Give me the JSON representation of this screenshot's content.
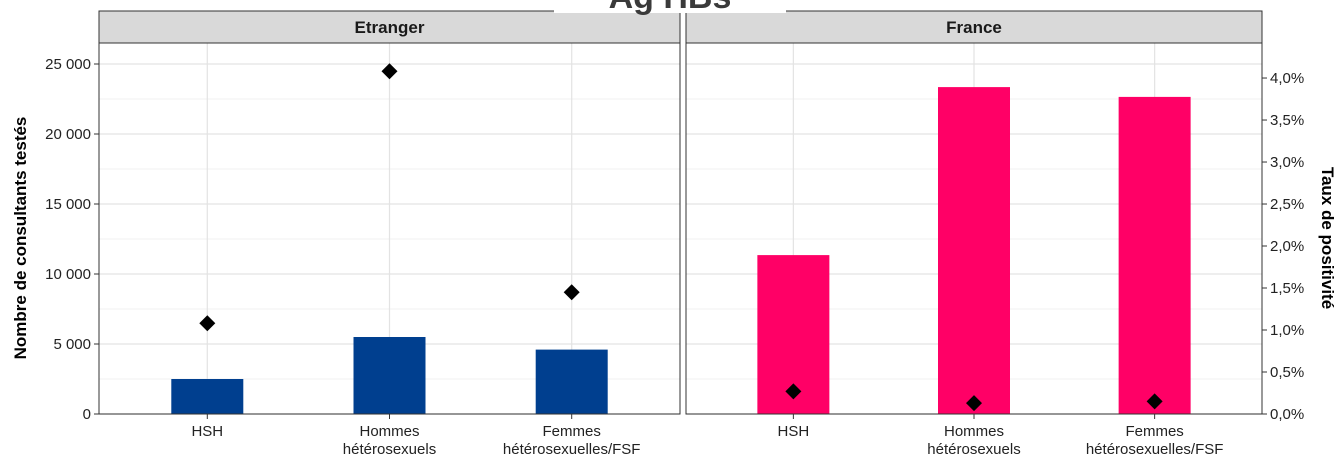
{
  "chart_data": {
    "type": "bar",
    "title": "Ag HBs",
    "categories": [
      [
        "HSH"
      ],
      [
        "Hommes",
        "hétérosexuels"
      ],
      [
        "Femmes",
        "hétérosexuelles/FSF"
      ]
    ],
    "ylabel": "Nombre de consultants testés",
    "y2label": "Taux de positivité",
    "ylim": [
      0,
      26500
    ],
    "y2lim": [
      0,
      4.417
    ],
    "y_ticks": [
      0,
      5000,
      10000,
      15000,
      20000,
      25000
    ],
    "y_tick_labels": [
      "0",
      "5 000",
      "10 000",
      "15 000",
      "20 000",
      "25 000"
    ],
    "y2_ticks": [
      0,
      0.5,
      1.0,
      1.5,
      2.0,
      2.5,
      3.0,
      3.5,
      4.0
    ],
    "y2_tick_labels": [
      "0,0%",
      "0,5%",
      "1,0%",
      "1,5%",
      "2,0%",
      "2,5%",
      "3,0%",
      "3,5%",
      "4,0%"
    ],
    "grid": true,
    "legend": "none",
    "panels": [
      {
        "name": "Etranger",
        "bar_color": "#003f8f",
        "bars": [
          2500,
          5500,
          4600
        ],
        "rates": [
          1.08,
          4.08,
          1.45
        ]
      },
      {
        "name": "France",
        "bar_color": "#ff0066",
        "bars": [
          11350,
          23350,
          22650
        ],
        "rates": [
          0.27,
          0.13,
          0.15
        ]
      }
    ]
  }
}
